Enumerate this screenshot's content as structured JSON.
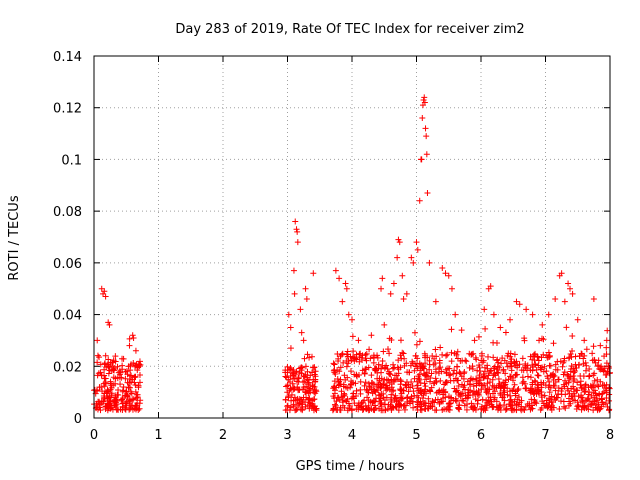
{
  "chart_data": {
    "type": "scatter",
    "title": "Day 283 of 2019, Rate Of TEC Index for receiver zim2",
    "xlabel": "GPS time / hours",
    "ylabel": "ROTI / TECUs",
    "xlim": [
      0,
      8
    ],
    "ylim": [
      0,
      0.14
    ],
    "grid": true,
    "marker": "plus",
    "color": "#ff0000",
    "x_ticks": [
      "0",
      "1",
      "2",
      "3",
      "4",
      "5",
      "6",
      "7",
      "8"
    ],
    "y_ticks": [
      "0",
      "0.02",
      "0.04",
      "0.06",
      "0.08",
      "0.1",
      "0.12",
      "0.14"
    ],
    "x_tick_values": [
      0,
      1,
      2,
      3,
      4,
      5,
      6,
      7,
      8
    ],
    "y_tick_values": [
      0,
      0.02,
      0.04,
      0.06,
      0.08,
      0.1,
      0.12,
      0.14
    ],
    "clusters": [
      {
        "x_range": [
          0.0,
          0.72
        ],
        "y_base": [
          0.003,
          0.022
        ],
        "count": 240
      },
      {
        "x_range": [
          2.95,
          3.45
        ],
        "y_base": [
          0.003,
          0.02
        ],
        "count": 160
      },
      {
        "x_range": [
          3.7,
          8.0
        ],
        "y_base": [
          0.003,
          0.025
        ],
        "count": 1200
      }
    ],
    "highlight_points": [
      {
        "x": 0.12,
        "y": 0.05
      },
      {
        "x": 0.14,
        "y": 0.048
      },
      {
        "x": 0.16,
        "y": 0.049
      },
      {
        "x": 0.18,
        "y": 0.047
      },
      {
        "x": 0.22,
        "y": 0.037
      },
      {
        "x": 0.24,
        "y": 0.036
      },
      {
        "x": 0.05,
        "y": 0.03
      },
      {
        "x": 0.6,
        "y": 0.032
      },
      {
        "x": 0.55,
        "y": 0.028
      },
      {
        "x": 0.65,
        "y": 0.026
      },
      {
        "x": 3.12,
        "y": 0.076
      },
      {
        "x": 3.14,
        "y": 0.073
      },
      {
        "x": 3.15,
        "y": 0.072
      },
      {
        "x": 3.16,
        "y": 0.068
      },
      {
        "x": 3.1,
        "y": 0.057
      },
      {
        "x": 3.11,
        "y": 0.048
      },
      {
        "x": 3.2,
        "y": 0.042
      },
      {
        "x": 3.28,
        "y": 0.05
      },
      {
        "x": 3.3,
        "y": 0.046
      },
      {
        "x": 3.4,
        "y": 0.056
      },
      {
        "x": 3.02,
        "y": 0.04
      },
      {
        "x": 3.05,
        "y": 0.035
      },
      {
        "x": 3.22,
        "y": 0.033
      },
      {
        "x": 3.25,
        "y": 0.03
      },
      {
        "x": 3.75,
        "y": 0.057
      },
      {
        "x": 3.8,
        "y": 0.054
      },
      {
        "x": 3.9,
        "y": 0.052
      },
      {
        "x": 3.92,
        "y": 0.05
      },
      {
        "x": 3.85,
        "y": 0.045
      },
      {
        "x": 3.95,
        "y": 0.04
      },
      {
        "x": 4.0,
        "y": 0.038
      },
      {
        "x": 4.1,
        "y": 0.03
      },
      {
        "x": 4.3,
        "y": 0.032
      },
      {
        "x": 4.5,
        "y": 0.036
      },
      {
        "x": 4.45,
        "y": 0.05
      },
      {
        "x": 4.47,
        "y": 0.054
      },
      {
        "x": 4.6,
        "y": 0.048
      },
      {
        "x": 4.65,
        "y": 0.052
      },
      {
        "x": 4.72,
        "y": 0.069
      },
      {
        "x": 4.74,
        "y": 0.068
      },
      {
        "x": 4.7,
        "y": 0.062
      },
      {
        "x": 4.78,
        "y": 0.055
      },
      {
        "x": 4.8,
        "y": 0.046
      },
      {
        "x": 4.85,
        "y": 0.048
      },
      {
        "x": 4.92,
        "y": 0.062
      },
      {
        "x": 4.95,
        "y": 0.06
      },
      {
        "x": 5.0,
        "y": 0.068
      },
      {
        "x": 5.02,
        "y": 0.065
      },
      {
        "x": 5.05,
        "y": 0.084
      },
      {
        "x": 5.07,
        "y": 0.1
      },
      {
        "x": 5.08,
        "y": 0.1
      },
      {
        "x": 5.09,
        "y": 0.116
      },
      {
        "x": 5.1,
        "y": 0.121
      },
      {
        "x": 5.11,
        "y": 0.123
      },
      {
        "x": 5.12,
        "y": 0.124
      },
      {
        "x": 5.13,
        "y": 0.122
      },
      {
        "x": 5.14,
        "y": 0.112
      },
      {
        "x": 5.15,
        "y": 0.109
      },
      {
        "x": 5.16,
        "y": 0.102
      },
      {
        "x": 5.17,
        "y": 0.087
      },
      {
        "x": 5.2,
        "y": 0.06
      },
      {
        "x": 5.3,
        "y": 0.045
      },
      {
        "x": 5.4,
        "y": 0.058
      },
      {
        "x": 5.45,
        "y": 0.056
      },
      {
        "x": 5.5,
        "y": 0.055
      },
      {
        "x": 5.55,
        "y": 0.05
      },
      {
        "x": 5.6,
        "y": 0.04
      },
      {
        "x": 5.7,
        "y": 0.034
      },
      {
        "x": 5.9,
        "y": 0.03
      },
      {
        "x": 6.05,
        "y": 0.042
      },
      {
        "x": 6.12,
        "y": 0.05
      },
      {
        "x": 6.15,
        "y": 0.051
      },
      {
        "x": 6.2,
        "y": 0.04
      },
      {
        "x": 6.3,
        "y": 0.035
      },
      {
        "x": 6.45,
        "y": 0.038
      },
      {
        "x": 6.55,
        "y": 0.045
      },
      {
        "x": 6.6,
        "y": 0.044
      },
      {
        "x": 6.7,
        "y": 0.042
      },
      {
        "x": 6.8,
        "y": 0.04
      },
      {
        "x": 6.9,
        "y": 0.03
      },
      {
        "x": 6.95,
        "y": 0.036
      },
      {
        "x": 7.05,
        "y": 0.04
      },
      {
        "x": 7.15,
        "y": 0.046
      },
      {
        "x": 7.22,
        "y": 0.055
      },
      {
        "x": 7.25,
        "y": 0.056
      },
      {
        "x": 7.3,
        "y": 0.045
      },
      {
        "x": 7.35,
        "y": 0.052
      },
      {
        "x": 7.38,
        "y": 0.05
      },
      {
        "x": 7.42,
        "y": 0.048
      },
      {
        "x": 7.5,
        "y": 0.038
      },
      {
        "x": 7.6,
        "y": 0.03
      },
      {
        "x": 7.75,
        "y": 0.046
      },
      {
        "x": 7.85,
        "y": 0.028
      },
      {
        "x": 7.95,
        "y": 0.03
      }
    ]
  }
}
